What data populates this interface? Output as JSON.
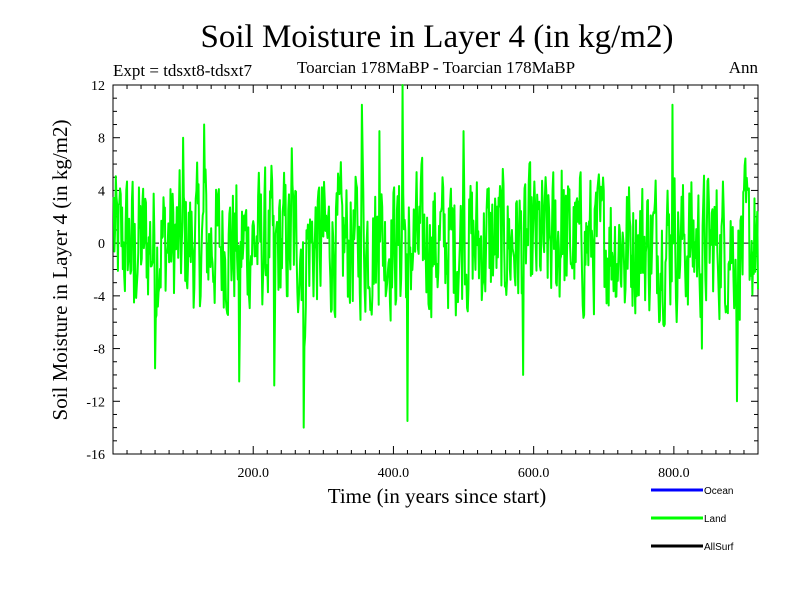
{
  "chart_data": {
    "type": "line",
    "title": "Soil Moisture in Layer 4 (in kg/m2)",
    "subtitle_left": "Expt = tdsxt8-tdsxt7",
    "subtitle_center": "Toarcian 178MaBP - Toarcian 178MaBP",
    "subtitle_right": "Ann",
    "xlabel": "Time (in years since start)",
    "ylabel": "Soil Moisture in Layer 4 (in kg/m2)",
    "xlim": [
      0,
      920
    ],
    "ylim": [
      -16,
      12
    ],
    "x_ticks": [
      {
        "value": 200,
        "label": "200.0"
      },
      {
        "value": 400,
        "label": "400.0"
      },
      {
        "value": 600,
        "label": "600.0"
      },
      {
        "value": 800,
        "label": "800.0"
      }
    ],
    "y_ticks": [
      {
        "value": 12,
        "label": "12"
      },
      {
        "value": 8,
        "label": "8"
      },
      {
        "value": 4,
        "label": "4"
      },
      {
        "value": 0,
        "label": "0"
      },
      {
        "value": -4,
        "label": "-4"
      },
      {
        "value": -8,
        "label": "-8"
      },
      {
        "value": -12,
        "label": "-12"
      },
      {
        "value": -16,
        "label": "-16"
      }
    ],
    "zero_line": "dashed",
    "legend": [
      {
        "name": "Ocean",
        "color": "#0000ff"
      },
      {
        "name": "Land",
        "color": "#00ff00"
      },
      {
        "name": "AllSurf",
        "color": "#000000"
      }
    ],
    "series": [
      {
        "name": "Land",
        "color": "#00ff00",
        "x_start": 1,
        "x_step": 1,
        "values_note": "approximate annual anomaly, noisy signal between about -14 and +12",
        "anchor_points": [
          [
            1,
            3.5
          ],
          [
            30,
            -4.5
          ],
          [
            60,
            -9.5
          ],
          [
            100,
            8.0
          ],
          [
            130,
            9.0
          ],
          [
            180,
            -10.5
          ],
          [
            230,
            -10.8
          ],
          [
            255,
            7.2
          ],
          [
            272,
            -14.0
          ],
          [
            300,
            0.5
          ],
          [
            355,
            10.5
          ],
          [
            380,
            8.5
          ],
          [
            413,
            12.0
          ],
          [
            420,
            -13.5
          ],
          [
            470,
            5.0
          ],
          [
            500,
            8.5
          ],
          [
            560,
            -3.0
          ],
          [
            585,
            -10.0
          ],
          [
            640,
            5.5
          ],
          [
            700,
            4.0
          ],
          [
            730,
            -4.5
          ],
          [
            798,
            10.5
          ],
          [
            840,
            -8.0
          ],
          [
            890,
            -12.0
          ],
          [
            920,
            -3.5
          ]
        ]
      }
    ]
  }
}
